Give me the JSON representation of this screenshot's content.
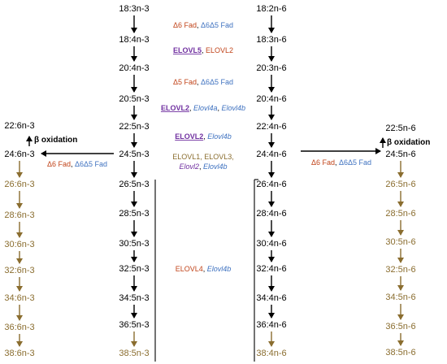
{
  "colors": {
    "black": "#000000",
    "olive": "#8a6d2f",
    "orange": "#c1441a",
    "blue": "#3f72c0",
    "purple": "#7030a0"
  },
  "n3_main": [
    {
      "id": "n3_0",
      "text": "18:3n-3"
    },
    {
      "id": "n3_1",
      "text": "18:4n-3"
    },
    {
      "id": "n3_2",
      "text": "20:4n-3"
    },
    {
      "id": "n3_3",
      "text": "20:5n-3"
    },
    {
      "id": "n3_4",
      "text": "22:5n-3"
    },
    {
      "id": "n3_5",
      "text": "24:5n-3"
    },
    {
      "id": "n3_6",
      "text": "26:5n-3"
    },
    {
      "id": "n3_7",
      "text": "28:5n-3"
    },
    {
      "id": "n3_8",
      "text": "30:5n-3"
    },
    {
      "id": "n3_9",
      "text": "32:5n-3"
    },
    {
      "id": "n3_10",
      "text": "34:5n-3"
    },
    {
      "id": "n3_11",
      "text": "36:5n-3"
    },
    {
      "id": "n3_12",
      "text": "38:5n-3"
    }
  ],
  "n6_main": [
    {
      "id": "n6_0",
      "text": "18:2n-6"
    },
    {
      "id": "n6_1",
      "text": "18:3n-6"
    },
    {
      "id": "n6_2",
      "text": "20:3n-6"
    },
    {
      "id": "n6_3",
      "text": "20:4n-6"
    },
    {
      "id": "n6_4",
      "text": "22:4n-6"
    },
    {
      "id": "n6_5",
      "text": "24:4n-6"
    },
    {
      "id": "n6_6",
      "text": "26:4n-6"
    },
    {
      "id": "n6_7",
      "text": "28:4n-6"
    },
    {
      "id": "n6_8",
      "text": "30:4n-6"
    },
    {
      "id": "n6_9",
      "text": "32:4n-6"
    },
    {
      "id": "n6_10",
      "text": "34:4n-6"
    },
    {
      "id": "n6_11",
      "text": "36:4n-6"
    },
    {
      "id": "n6_12",
      "text": "38:4n-6"
    }
  ],
  "n3_branch": [
    {
      "id": "b3_0",
      "text": "22:6n-3"
    },
    {
      "id": "b3_1",
      "text": "24:6n-3"
    },
    {
      "id": "b3_2",
      "text": "26:6n-3"
    },
    {
      "id": "b3_3",
      "text": "28:6n-3"
    },
    {
      "id": "b3_4",
      "text": "30:6n-3"
    },
    {
      "id": "b3_5",
      "text": "32:6n-3"
    },
    {
      "id": "b3_6",
      "text": "34:6n-3"
    },
    {
      "id": "b3_7",
      "text": "36:6n-3"
    },
    {
      "id": "b3_8",
      "text": "38:6n-3"
    }
  ],
  "n6_branch": [
    {
      "id": "b6_0",
      "text": "22:5n-6"
    },
    {
      "id": "b6_1",
      "text": "24:5n-6"
    },
    {
      "id": "b6_2",
      "text": "26:5n-6"
    },
    {
      "id": "b6_3",
      "text": "28:5n-6"
    },
    {
      "id": "b6_4",
      "text": "30:5n-6"
    },
    {
      "id": "b6_5",
      "text": "32:5n-6"
    },
    {
      "id": "b6_6",
      "text": "34:5n-6"
    },
    {
      "id": "b6_7",
      "text": "36:5n-6"
    },
    {
      "id": "b6_8",
      "text": "38:5n-6"
    }
  ],
  "enzymes": [
    {
      "id": "enz_d6_1",
      "parts": [
        {
          "text": "Δ6 Fad",
          "color": "orange"
        },
        {
          "text": ", ",
          "color": "black"
        },
        {
          "text": "Δ6Δ5 Fad",
          "color": "blue"
        }
      ]
    },
    {
      "id": "enz_elovl5",
      "parts": [
        {
          "text": "ELOVL5",
          "color": "purple",
          "bold": true,
          "underline": true
        },
        {
          "text": ", ",
          "color": "black"
        },
        {
          "text": "ELOVL2",
          "color": "orange"
        }
      ]
    },
    {
      "id": "enz_d5",
      "parts": [
        {
          "text": "Δ5 Fad",
          "color": "orange"
        },
        {
          "text": ", ",
          "color": "black"
        },
        {
          "text": "Δ6Δ5 Fad",
          "color": "blue"
        }
      ]
    },
    {
      "id": "enz_elovl2a",
      "parts": [
        {
          "text": "ELOVL2",
          "color": "purple",
          "bold": true,
          "underline": true
        },
        {
          "text": ", ",
          "color": "black"
        },
        {
          "text": "Elovl4a",
          "color": "blue",
          "italic": true
        },
        {
          "text": ", ",
          "color": "black"
        },
        {
          "text": "Elovl4b",
          "color": "blue",
          "italic": true
        }
      ]
    },
    {
      "id": "enz_elovl2b",
      "parts": [
        {
          "text": "ELOVL2",
          "color": "purple",
          "bold": true,
          "underline": true
        },
        {
          "text": ", ",
          "color": "black"
        },
        {
          "text": "Elovl4b",
          "color": "blue",
          "italic": true
        }
      ]
    },
    {
      "id": "enz_elovl_multi_1",
      "parts": [
        {
          "text": "ELOVL1, ELOVL3,",
          "color": "olive"
        }
      ]
    },
    {
      "id": "enz_elovl_multi_2",
      "parts": [
        {
          "text": "Elovl2",
          "color": "purple",
          "italic": true
        },
        {
          "text": ", ",
          "color": "black"
        },
        {
          "text": "Elovl4b",
          "color": "blue",
          "italic": true
        }
      ]
    },
    {
      "id": "enz_d6_left",
      "parts": [
        {
          "text": "Δ6 Fad",
          "color": "orange"
        },
        {
          "text": ", ",
          "color": "black"
        },
        {
          "text": "Δ6Δ5 Fad",
          "color": "blue"
        }
      ]
    },
    {
      "id": "enz_d6_right",
      "parts": [
        {
          "text": "Δ6 Fad",
          "color": "orange"
        },
        {
          "text": ", ",
          "color": "black"
        },
        {
          "text": "Δ6Δ5 Fad",
          "color": "blue"
        }
      ]
    },
    {
      "id": "enz_elovl4",
      "parts": [
        {
          "text": "ELOVL4",
          "color": "orange"
        },
        {
          "text": ", ",
          "color": "black"
        },
        {
          "text": "Elovl4b",
          "color": "blue",
          "italic": true
        }
      ]
    }
  ],
  "beta_oxidation": "β oxidation"
}
